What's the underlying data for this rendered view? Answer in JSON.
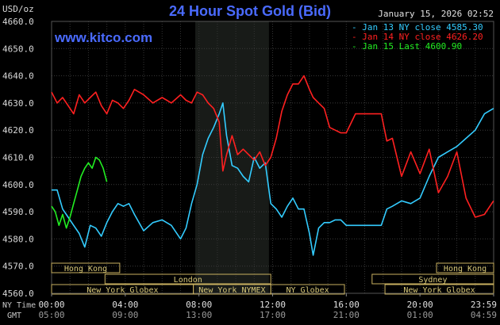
{
  "header": {
    "title": "24 Hour Spot Gold (Bid)",
    "date": "January 15, 2026 02:52",
    "units": "USD/oz",
    "site": "www.kitco.com"
  },
  "legend": [
    {
      "label": "Jan 13 NY close 4585.30",
      "color": "#33ccff"
    },
    {
      "label": "Jan 14 NY close 4626.20",
      "color": "#ff2020"
    },
    {
      "label": "Jan 15 Last 4600.90",
      "color": "#22ee22"
    }
  ],
  "axis_labels": {
    "ny_time": "NY Time",
    "gmt": "GMT"
  },
  "sessions": [
    {
      "name": "Hong Kong",
      "start": 0,
      "end": 3.7,
      "row": 0
    },
    {
      "name": "Hong Kong",
      "start": 20.9,
      "end": 24,
      "row": 0
    },
    {
      "name": "London",
      "start": 2.9,
      "end": 11.9,
      "row": 1
    },
    {
      "name": "Sydney",
      "start": 17.4,
      "end": 24,
      "row": 1
    },
    {
      "name": "New York Globex",
      "start": 0,
      "end": 7.7,
      "row": 2
    },
    {
      "name": "New York NYMEX",
      "start": 7.7,
      "end": 11.9,
      "row": 2
    },
    {
      "name": "NY Globex",
      "start": 11.9,
      "end": 15.9,
      "row": 2
    },
    {
      "name": "New York Globex",
      "start": 18.1,
      "end": 24,
      "row": 2
    }
  ],
  "chart_data": {
    "type": "line",
    "title": "24 Hour Spot Gold (Bid)",
    "ylabel": "USD/oz",
    "ylim": [
      4560,
      4660
    ],
    "yticks": [
      4560.0,
      4570.0,
      4580.0,
      4590.0,
      4600.0,
      4610.0,
      4620.0,
      4630.0,
      4640.0,
      4650.0,
      4660.0
    ],
    "xlim": [
      0,
      24
    ],
    "x_ticks_ny": [
      "00:00",
      "04:00",
      "08:00",
      "12:00",
      "16:00",
      "20:00",
      "23:59"
    ],
    "x_ticks_gmt": [
      "05:00",
      "09:00",
      "13:00",
      "17:00",
      "21:00",
      "01:00",
      "04:59"
    ],
    "x_unit": "hours since 00:00 NY time",
    "shaded_interval": [
      7.8,
      11.8
    ],
    "grid": true,
    "legend_position": "top-right",
    "series": [
      {
        "name": "Jan 13 NY close 4585.30",
        "color": "#33ccff",
        "x": [
          0,
          0.3,
          0.6,
          0.9,
          1.2,
          1.5,
          1.8,
          2.1,
          2.4,
          2.7,
          3.0,
          3.3,
          3.6,
          3.9,
          4.2,
          4.5,
          5.0,
          5.5,
          6.0,
          6.5,
          7.0,
          7.3,
          7.6,
          7.9,
          8.2,
          8.5,
          8.8,
          9.1,
          9.3,
          9.5,
          9.8,
          10.1,
          10.4,
          10.7,
          11.0,
          11.3,
          11.6,
          11.9,
          12.2,
          12.5,
          12.8,
          13.1,
          13.4,
          13.7,
          14.0,
          14.2,
          14.5,
          14.8,
          15.1,
          15.4,
          15.7,
          16.0,
          16.5,
          17.0,
          17.5,
          17.9,
          18.2,
          18.5,
          19.0,
          19.5,
          20.0,
          20.5,
          21.0,
          21.5,
          22.0,
          22.5,
          23.0,
          23.5,
          23.99
        ],
        "values": [
          4598,
          4598,
          4591,
          4588,
          4585,
          4582,
          4577,
          4585,
          4584,
          4581,
          4586,
          4590,
          4593,
          4592,
          4593,
          4589,
          4583,
          4586,
          4587,
          4585,
          4580,
          4584,
          4593,
          4600,
          4611,
          4617,
          4621,
          4626,
          4630,
          4618,
          4607,
          4606,
          4603,
          4601,
          4610,
          4606,
          4608,
          4593,
          4591,
          4588,
          4592,
          4595,
          4591,
          4591,
          4582,
          4574,
          4584,
          4586,
          4586,
          4587,
          4587,
          4585,
          4585,
          4585,
          4585,
          4585,
          4591,
          4592,
          4594,
          4593,
          4595,
          4603,
          4610,
          4612,
          4614,
          4617,
          4620,
          4626,
          4628
        ]
      },
      {
        "name": "Jan 14 NY close 4626.20",
        "color": "#ff2020",
        "x": [
          0,
          0.3,
          0.6,
          0.9,
          1.2,
          1.5,
          1.8,
          2.1,
          2.4,
          2.7,
          3.0,
          3.3,
          3.6,
          3.9,
          4.2,
          4.5,
          5.0,
          5.5,
          6.0,
          6.5,
          7.0,
          7.3,
          7.6,
          7.9,
          8.2,
          8.5,
          8.8,
          9.1,
          9.3,
          9.5,
          9.8,
          10.1,
          10.4,
          10.7,
          11.0,
          11.3,
          11.6,
          11.9,
          12.2,
          12.5,
          12.8,
          13.1,
          13.4,
          13.7,
          14.0,
          14.2,
          14.5,
          14.8,
          15.1,
          15.4,
          15.7,
          16.0,
          16.5,
          17.0,
          17.5,
          17.9,
          18.2,
          18.5,
          19.0,
          19.5,
          20.0,
          20.5,
          21.0,
          21.5,
          22.0,
          22.5,
          23.0,
          23.5,
          23.99
        ],
        "values": [
          4634,
          4630,
          4632,
          4629,
          4626,
          4633,
          4630,
          4632,
          4634,
          4629,
          4626,
          4631,
          4630,
          4628,
          4631,
          4635,
          4633,
          4630,
          4632,
          4630,
          4633,
          4631,
          4630,
          4634,
          4633,
          4630,
          4628,
          4623,
          4605,
          4611,
          4618,
          4611,
          4613,
          4611,
          4609,
          4612,
          4607,
          4610,
          4617,
          4627,
          4633,
          4637,
          4637,
          4640,
          4635,
          4632,
          4630,
          4628,
          4621,
          4620,
          4619,
          4619,
          4626,
          4626,
          4626,
          4626,
          4616,
          4617,
          4603,
          4612,
          4604,
          4613,
          4597,
          4603,
          4612,
          4595,
          4588,
          4589,
          4594
        ]
      },
      {
        "name": "Jan 15 Last 4600.90",
        "color": "#22ee22",
        "x": [
          0,
          0.2,
          0.4,
          0.6,
          0.8,
          1.0,
          1.2,
          1.4,
          1.6,
          1.8,
          2.0,
          2.2,
          2.4,
          2.6,
          2.8,
          3.0
        ],
        "values": [
          4592,
          4590,
          4585,
          4589,
          4584,
          4588,
          4593,
          4598,
          4603,
          4606,
          4608,
          4606,
          4610,
          4609,
          4606,
          4601
        ]
      }
    ]
  }
}
